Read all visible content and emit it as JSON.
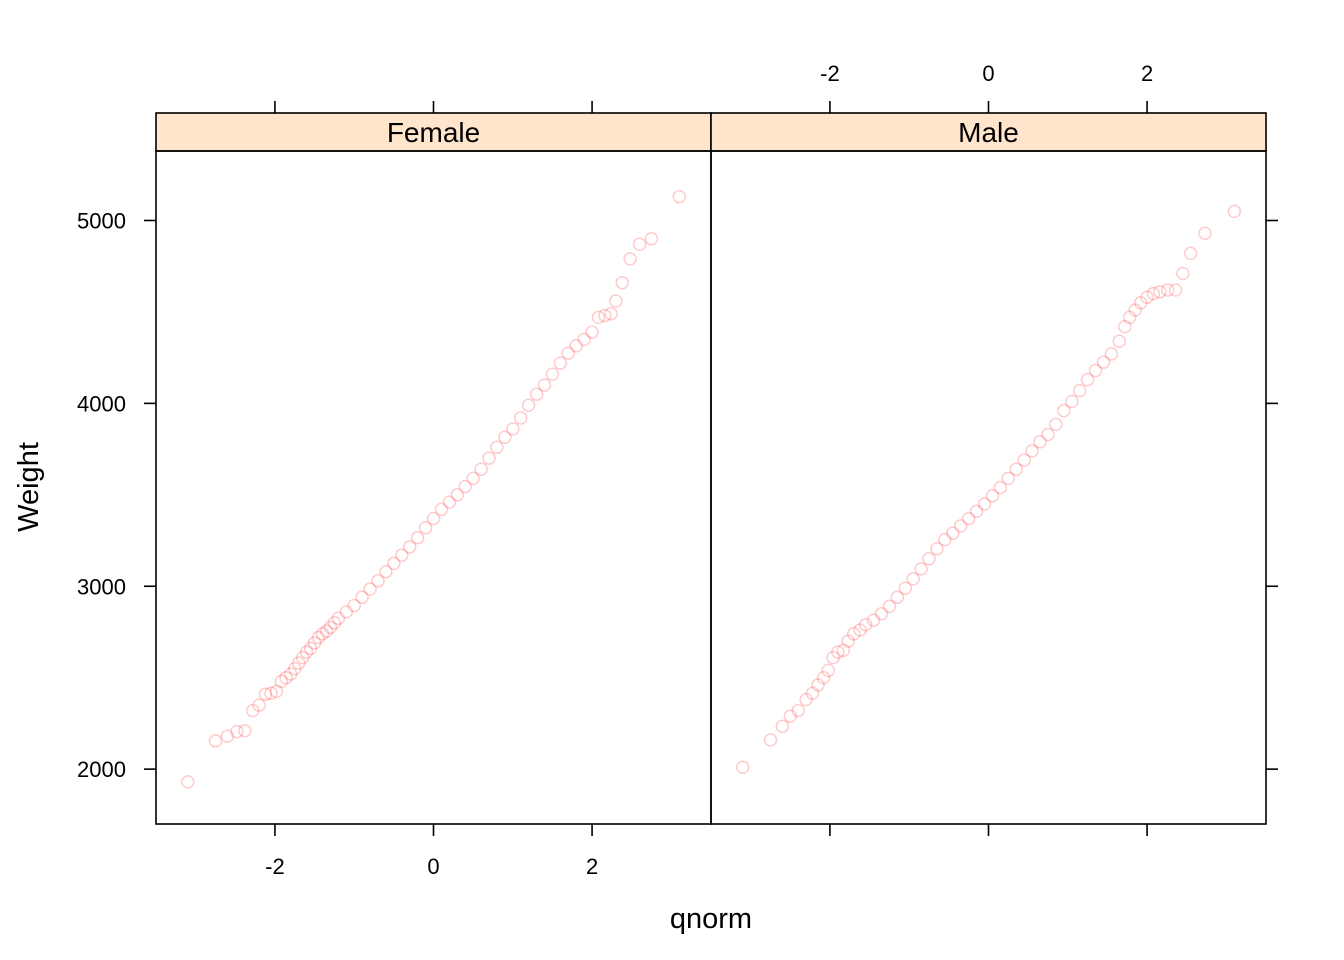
{
  "chart_data": {
    "type": "scatter",
    "xlabel": "qnorm",
    "ylabel": "Weight",
    "xlim": [
      -3.5,
      3.5
    ],
    "ylim": [
      1700,
      5380
    ],
    "x_ticks": [
      -2,
      0,
      2
    ],
    "x_tick_labels": [
      "-2",
      "0",
      "2"
    ],
    "y_ticks": [
      2000,
      3000,
      4000,
      5000
    ],
    "y_tick_labels": [
      "2000",
      "3000",
      "4000",
      "5000"
    ],
    "point_color": "#ff0000",
    "strip_color": "#ffe5cc",
    "grid": false,
    "panels": [
      {
        "name": "Female",
        "points": [
          [
            -3.1,
            1930
          ],
          [
            -2.75,
            2155
          ],
          [
            -2.6,
            2180
          ],
          [
            -2.48,
            2205
          ],
          [
            -2.38,
            2210
          ],
          [
            -2.28,
            2320
          ],
          [
            -2.2,
            2350
          ],
          [
            -2.12,
            2410
          ],
          [
            -2.05,
            2415
          ],
          [
            -1.98,
            2425
          ],
          [
            -1.92,
            2480
          ],
          [
            -1.86,
            2500
          ],
          [
            -1.8,
            2520
          ],
          [
            -1.75,
            2550
          ],
          [
            -1.7,
            2580
          ],
          [
            -1.65,
            2610
          ],
          [
            -1.6,
            2640
          ],
          [
            -1.55,
            2660
          ],
          [
            -1.5,
            2690
          ],
          [
            -1.45,
            2720
          ],
          [
            -1.4,
            2740
          ],
          [
            -1.35,
            2755
          ],
          [
            -1.3,
            2775
          ],
          [
            -1.25,
            2800
          ],
          [
            -1.2,
            2825
          ],
          [
            -1.1,
            2860
          ],
          [
            -1.0,
            2895
          ],
          [
            -0.9,
            2940
          ],
          [
            -0.8,
            2985
          ],
          [
            -0.7,
            3030
          ],
          [
            -0.6,
            3080
          ],
          [
            -0.5,
            3125
          ],
          [
            -0.4,
            3170
          ],
          [
            -0.3,
            3215
          ],
          [
            -0.2,
            3265
          ],
          [
            -0.1,
            3320
          ],
          [
            0.0,
            3370
          ],
          [
            0.1,
            3420
          ],
          [
            0.2,
            3460
          ],
          [
            0.3,
            3500
          ],
          [
            0.4,
            3545
          ],
          [
            0.5,
            3590
          ],
          [
            0.6,
            3640
          ],
          [
            0.7,
            3700
          ],
          [
            0.8,
            3760
          ],
          [
            0.9,
            3815
          ],
          [
            1.0,
            3860
          ],
          [
            1.1,
            3920
          ],
          [
            1.2,
            3990
          ],
          [
            1.3,
            4050
          ],
          [
            1.4,
            4100
          ],
          [
            1.5,
            4160
          ],
          [
            1.6,
            4220
          ],
          [
            1.7,
            4275
          ],
          [
            1.8,
            4315
          ],
          [
            1.9,
            4350
          ],
          [
            2.0,
            4390
          ],
          [
            2.08,
            4470
          ],
          [
            2.16,
            4480
          ],
          [
            2.24,
            4490
          ],
          [
            2.3,
            4560
          ],
          [
            2.38,
            4660
          ],
          [
            2.48,
            4790
          ],
          [
            2.6,
            4870
          ],
          [
            2.75,
            4900
          ],
          [
            3.1,
            5130
          ]
        ]
      },
      {
        "name": "Male",
        "points": [
          [
            -3.1,
            2010
          ],
          [
            -2.75,
            2160
          ],
          [
            -2.6,
            2235
          ],
          [
            -2.5,
            2290
          ],
          [
            -2.4,
            2320
          ],
          [
            -2.3,
            2380
          ],
          [
            -2.22,
            2415
          ],
          [
            -2.15,
            2460
          ],
          [
            -2.08,
            2500
          ],
          [
            -2.02,
            2540
          ],
          [
            -1.96,
            2610
          ],
          [
            -1.9,
            2640
          ],
          [
            -1.83,
            2650
          ],
          [
            -1.77,
            2700
          ],
          [
            -1.7,
            2740
          ],
          [
            -1.62,
            2760
          ],
          [
            -1.55,
            2790
          ],
          [
            -1.45,
            2815
          ],
          [
            -1.35,
            2850
          ],
          [
            -1.25,
            2890
          ],
          [
            -1.15,
            2940
          ],
          [
            -1.05,
            2990
          ],
          [
            -0.95,
            3040
          ],
          [
            -0.85,
            3095
          ],
          [
            -0.75,
            3150
          ],
          [
            -0.65,
            3205
          ],
          [
            -0.55,
            3255
          ],
          [
            -0.45,
            3290
          ],
          [
            -0.35,
            3330
          ],
          [
            -0.25,
            3370
          ],
          [
            -0.15,
            3410
          ],
          [
            -0.05,
            3450
          ],
          [
            0.05,
            3495
          ],
          [
            0.15,
            3540
          ],
          [
            0.25,
            3590
          ],
          [
            0.35,
            3640
          ],
          [
            0.45,
            3690
          ],
          [
            0.55,
            3740
          ],
          [
            0.65,
            3790
          ],
          [
            0.75,
            3830
          ],
          [
            0.85,
            3885
          ],
          [
            0.95,
            3960
          ],
          [
            1.05,
            4010
          ],
          [
            1.15,
            4070
          ],
          [
            1.25,
            4130
          ],
          [
            1.35,
            4180
          ],
          [
            1.45,
            4225
          ],
          [
            1.55,
            4270
          ],
          [
            1.65,
            4340
          ],
          [
            1.72,
            4420
          ],
          [
            1.78,
            4470
          ],
          [
            1.85,
            4510
          ],
          [
            1.92,
            4550
          ],
          [
            2.0,
            4580
          ],
          [
            2.08,
            4600
          ],
          [
            2.16,
            4610
          ],
          [
            2.26,
            4620
          ],
          [
            2.36,
            4620
          ],
          [
            2.45,
            4710
          ],
          [
            2.55,
            4820
          ],
          [
            2.73,
            4930
          ],
          [
            3.1,
            5050
          ]
        ]
      }
    ]
  }
}
